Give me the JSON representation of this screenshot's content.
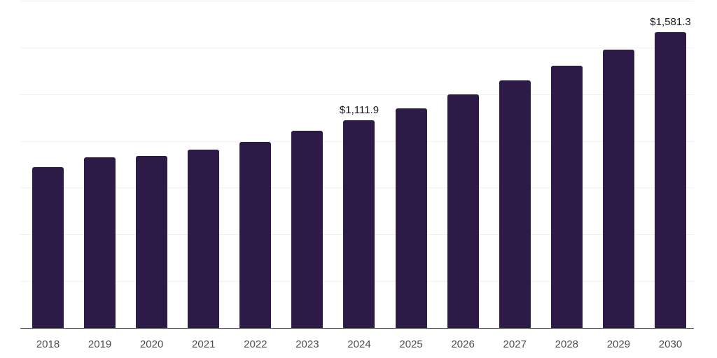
{
  "chart_data": {
    "type": "bar",
    "title": "",
    "xlabel": "",
    "ylabel": "",
    "categories": [
      "2018",
      "2019",
      "2020",
      "2021",
      "2022",
      "2023",
      "2024",
      "2025",
      "2026",
      "2027",
      "2028",
      "2029",
      "2030"
    ],
    "values": [
      861,
      913,
      921,
      953,
      996,
      1054,
      1111.9,
      1176,
      1248,
      1323,
      1403,
      1490,
      1581.3
    ],
    "ylim": [
      0,
      1750
    ],
    "gridline_step": 250,
    "grid": "horizontal-only",
    "legend": "none",
    "y_axis_labels_visible": false,
    "data_labels": [
      {
        "category": "2024",
        "text": "$1,111.9"
      },
      {
        "category": "2030",
        "text": "$1,581.3"
      }
    ]
  },
  "colors": {
    "bar": "#2e1a47",
    "axis_line": "#3c3c3c",
    "gridline": "#f1f1f1",
    "tick_label": "#4d4d4d",
    "value_label": "#1a1a1a",
    "background": "#ffffff"
  }
}
